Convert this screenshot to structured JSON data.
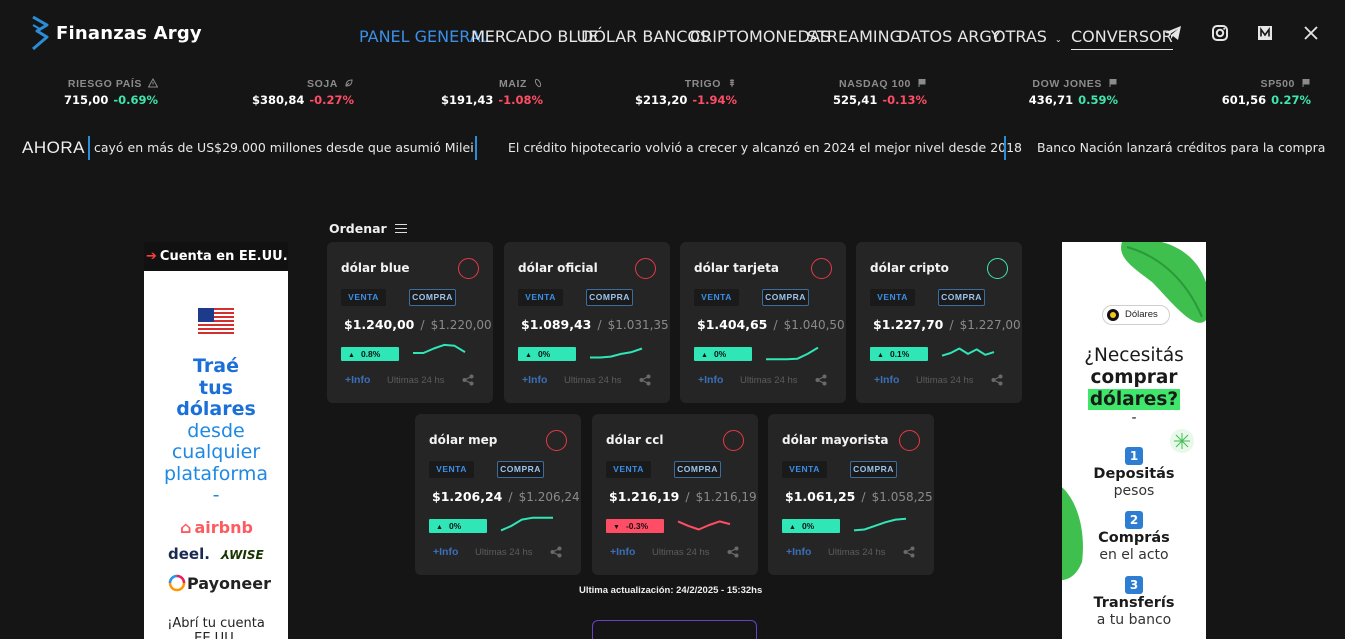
{
  "brand": {
    "name": "Finanzas Argy",
    "accent": "#2a8dd8"
  },
  "nav": {
    "links": [
      {
        "label": "PANEL GENERAL",
        "active": true
      },
      {
        "label": "MERCADO BLUE"
      },
      {
        "label": "DÓLAR BANCOS"
      },
      {
        "label": "CRIPTOMONEDAS"
      },
      {
        "label": "STREAMING"
      },
      {
        "label": "DATOS ARGY"
      },
      {
        "label": "OTRAS"
      },
      {
        "label": "CONVERSOR"
      }
    ],
    "social_icons": [
      "telegram-icon",
      "instagram-icon",
      "medium-icon",
      "x-icon"
    ]
  },
  "tickers": [
    {
      "name": "RIESGO PAÍS",
      "icon": "warning-icon",
      "value": "715,00",
      "change": "-0.69%",
      "dir": "up"
    },
    {
      "name": "SOJA",
      "icon": "leaf-icon",
      "value": "$380,84",
      "change": "-0.27%",
      "dir": "down"
    },
    {
      "name": "MAIZ",
      "icon": "corn-icon",
      "value": "$191,43",
      "change": "-1.08%",
      "dir": "down"
    },
    {
      "name": "TRIGO",
      "icon": "wheat-icon",
      "value": "$213,20",
      "change": "-1.94%",
      "dir": "down"
    },
    {
      "name": "NASDAQ 100",
      "icon": "flag-icon",
      "value": "525,41",
      "change": "-0.13%",
      "dir": "down"
    },
    {
      "name": "DOW JONES",
      "icon": "flag-icon",
      "value": "436,71",
      "change": "0.59%",
      "dir": "up"
    },
    {
      "name": "SP500",
      "icon": "flag-icon",
      "value": "601,56",
      "change": "0.27%",
      "dir": "up"
    }
  ],
  "news": {
    "label": "AHORA",
    "items": [
      "cayó en más de US$29.000 millones desde que asumió Milei",
      "El crédito hipotecario volvió a crecer y alcanzó en 2024 el mejor nivel desde 2018",
      "Banco Nación lanzará créditos para la compra auto"
    ]
  },
  "sort": {
    "label": "Ordenar"
  },
  "labels": {
    "venta": "VENTA",
    "compra": "COMPRA",
    "info": "+Info",
    "period": "Ultimas 24 hs"
  },
  "cards": [
    {
      "title": "dólar blue",
      "venta": "$1.240,00",
      "compra": "$1.220,00",
      "change": "0.8%",
      "dir": "up",
      "circle": "red",
      "spark": [
        0.5,
        0.5,
        0.75,
        0.95,
        0.9,
        0.55
      ]
    },
    {
      "title": "dólar oficial",
      "venta": "$1.089,43",
      "compra": "$1.031,35",
      "change": "0%",
      "dir": "up",
      "circle": "red",
      "spark": [
        0.25,
        0.25,
        0.3,
        0.45,
        0.55,
        0.75
      ]
    },
    {
      "title": "dólar tarjeta",
      "venta": "$1.404,65",
      "compra": "$1.040,50",
      "change": "0%",
      "dir": "up",
      "circle": "red",
      "spark": [
        0.15,
        0.15,
        0.15,
        0.18,
        0.45,
        0.8
      ]
    },
    {
      "title": "dólar cripto",
      "venta": "$1.227,70",
      "compra": "$1.227,00",
      "change": "0.1%",
      "dir": "up",
      "circle": "green",
      "spark": [
        0.35,
        0.5,
        0.75,
        0.45,
        0.7,
        0.4,
        0.55
      ]
    },
    {
      "title": "dólar mep",
      "venta": "$1.206,24",
      "compra": "$1.206,24",
      "change": "0%",
      "dir": "up",
      "circle": "red",
      "spark": [
        0.2,
        0.45,
        0.8,
        0.9,
        0.9,
        0.9
      ]
    },
    {
      "title": "dólar ccl",
      "venta": "$1.216,19",
      "compra": "$1.216,19",
      "change": "-0.3%",
      "dir": "down",
      "circle": "red",
      "spark": [
        0.7,
        0.45,
        0.25,
        0.5,
        0.7,
        0.55
      ]
    },
    {
      "title": "dólar mayorista",
      "venta": "$1.061,25",
      "compra": "$1.058,25",
      "change": "0%",
      "dir": "up",
      "circle": "red",
      "spark": [
        0.2,
        0.25,
        0.45,
        0.65,
        0.8,
        0.85
      ]
    }
  ],
  "updated": "Ultima actualización: 24/2/2025 - 15:32hs",
  "ad_left": {
    "header": "Cuenta en EE.UU.",
    "lines_bold": [
      "Traé",
      "tus",
      "dólares"
    ],
    "lines": [
      "desde",
      "cualquier",
      "plataforma",
      "-"
    ],
    "brands": [
      "airbnb",
      "deel.",
      "WISE",
      "Payoneer"
    ],
    "cta": "¡Abrí tu cuenta EE.UU."
  },
  "ad_right": {
    "pill": "Dólares",
    "line1": "¿Necesitás",
    "line2": "comprar",
    "line3": "dólares?",
    "dash": "-",
    "steps": [
      {
        "n": "1",
        "t": "Depositás",
        "s": "pesos"
      },
      {
        "n": "2",
        "t": "Comprás",
        "s": "en el acto"
      },
      {
        "n": "3",
        "t": "Transferís",
        "s": "a tu banco"
      }
    ]
  },
  "colors": {
    "up": "#2ee6b6",
    "down": "#ff4d66",
    "bg": "#151515",
    "card": "#252525"
  }
}
